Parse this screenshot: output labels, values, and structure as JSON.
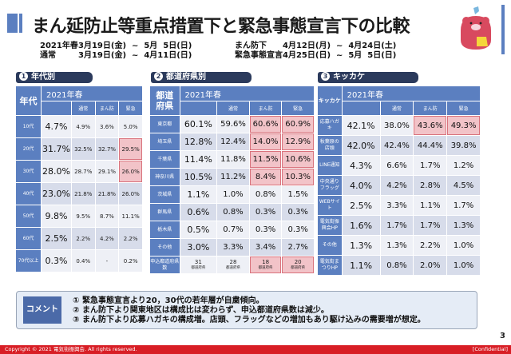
{
  "title": "まん延防止等重点措置下と緊急事態宣言下の比較",
  "periods_left": [
    {
      "label": "2021年春",
      "range": "3月19日(金)  ~  5月  5日(日)"
    },
    {
      "label": "通常",
      "range": "3月19日(金)  ~  4月11日(日)"
    }
  ],
  "periods_right": [
    {
      "label": "まん防下",
      "range": "4月12日(月)  ~  4月24日(土)"
    },
    {
      "label": "緊急事態宣言",
      "range": "4月25日(日)  ~  5月  5日(日)"
    }
  ],
  "colors": {
    "accent": "#5b7fc0",
    "section_header": "#2b3a5c",
    "highlight": "#f2c3c8",
    "footer": "#d81e25"
  },
  "sections": {
    "age": {
      "num": "1",
      "heading": "年代別",
      "row_header": "年代",
      "year": "2021年春",
      "cols": [
        "通常",
        "まん防",
        "緊急"
      ],
      "rows": [
        {
          "label": "10代",
          "total": "4.7%",
          "normal": "4.9%",
          "manbou": "3.6%",
          "emergency": "5.0%"
        },
        {
          "label": "20代",
          "total": "31.7%",
          "normal": "32.5%",
          "manbou": "32.7%",
          "emergency": "29.5%"
        },
        {
          "label": "30代",
          "total": "28.0%",
          "normal": "28.7%",
          "manbou": "29.1%",
          "emergency": "26.0%"
        },
        {
          "label": "40代",
          "total": "23.0%",
          "normal": "21.8%",
          "manbou": "21.8%",
          "emergency": "26.0%"
        },
        {
          "label": "50代",
          "total": "9.8%",
          "normal": "9.5%",
          "manbou": "8.7%",
          "emergency": "11.1%"
        },
        {
          "label": "60代",
          "total": "2.5%",
          "normal": "2.2%",
          "manbou": "4.2%",
          "emergency": "2.2%"
        },
        {
          "label": "70代以上",
          "total": "0.3%",
          "normal": "0.4%",
          "manbou": "-",
          "emergency": "0.2%"
        }
      ]
    },
    "pref": {
      "num": "2",
      "heading": "都道府県別",
      "row_header": "都道府県",
      "year": "2021年春",
      "cols": [
        "通常",
        "まん防",
        "緊急"
      ],
      "rows": [
        {
          "label": "東京都",
          "total": "60.1%",
          "normal": "59.6%",
          "manbou": "60.6%",
          "emergency": "60.9%"
        },
        {
          "label": "埼玉県",
          "total": "12.8%",
          "normal": "12.4%",
          "manbou": "14.0%",
          "emergency": "12.9%"
        },
        {
          "label": "千葉県",
          "total": "11.4%",
          "normal": "11.8%",
          "manbou": "11.5%",
          "emergency": "10.6%"
        },
        {
          "label": "神奈川県",
          "total": "10.5%",
          "normal": "11.2%",
          "manbou": "8.4%",
          "emergency": "10.3%"
        },
        {
          "label": "茨城県",
          "total": "1.1%",
          "normal": "1.0%",
          "manbou": "0.8%",
          "emergency": "1.5%"
        },
        {
          "label": "群馬県",
          "total": "0.6%",
          "normal": "0.8%",
          "manbou": "0.3%",
          "emergency": "0.3%"
        },
        {
          "label": "栃木県",
          "total": "0.5%",
          "normal": "0.7%",
          "manbou": "0.3%",
          "emergency": "0.3%"
        },
        {
          "label": "その他",
          "total": "3.0%",
          "normal": "3.3%",
          "manbou": "3.4%",
          "emergency": "2.7%"
        }
      ],
      "count_row": {
        "label": "申込都道府県数",
        "unit": "都道府県",
        "total": "31",
        "normal": "28",
        "manbou": "18",
        "emergency": "20"
      }
    },
    "trigger": {
      "num": "3",
      "heading": "キッカケ",
      "row_header": "キッカケ",
      "year": "2021年春",
      "cols": [
        "通常",
        "まん防",
        "緊急"
      ],
      "rows": [
        {
          "label": "応募ハガキ",
          "total": "42.1%",
          "normal": "38.0%",
          "manbou": "43.6%",
          "emergency": "49.3%"
        },
        {
          "label": "秋葉原の店頭",
          "total": "42.0%",
          "normal": "42.4%",
          "manbou": "44.4%",
          "emergency": "39.8%"
        },
        {
          "label": "LINE通知",
          "total": "4.3%",
          "normal": "6.6%",
          "manbou": "1.7%",
          "emergency": "1.2%"
        },
        {
          "label": "中央通りフラッグ",
          "total": "4.0%",
          "normal": "4.2%",
          "manbou": "2.8%",
          "emergency": "4.5%"
        },
        {
          "label": "WEBサイト",
          "total": "2.5%",
          "normal": "3.3%",
          "manbou": "1.1%",
          "emergency": "1.7%"
        },
        {
          "label": "電気街振興会HP",
          "total": "1.6%",
          "normal": "1.7%",
          "manbou": "1.7%",
          "emergency": "1.3%"
        },
        {
          "label": "その他",
          "total": "1.3%",
          "normal": "1.3%",
          "manbou": "2.2%",
          "emergency": "1.0%"
        },
        {
          "label": "電気街まつりHP",
          "total": "1.1%",
          "normal": "0.8%",
          "manbou": "2.0%",
          "emergency": "1.0%"
        }
      ]
    }
  },
  "comment": {
    "tag": "コメント",
    "lines": [
      "① 緊急事態宣言より20，30代の若年層が自粛傾向。",
      "② まん防下より関東地区は構成比は変わらず、申込都道府県数は減少。",
      "③ まん防下より応募ハガキの構成増。店頭、フラッグなどの増加もあり駆け込みの需要増が想定。"
    ]
  },
  "page_number": "3",
  "footer": {
    "copyright": "Copyright © 2021  電気街振興会. All rights reserved.",
    "confidential": "[Confidential]"
  }
}
